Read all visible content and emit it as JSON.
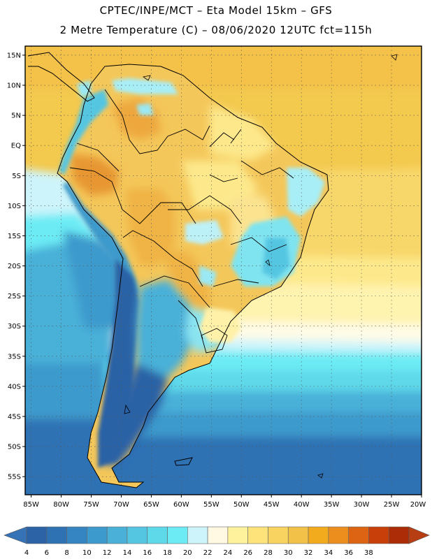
{
  "title": {
    "line1": "CPTEC/INPE/MCT  –   Eta Model 15km  –  GFS",
    "line2": "2 Metre Temperature (C) – 08/06/2020 12UTC fct=115h"
  },
  "map": {
    "variable": "2 Metre Temperature",
    "units": "C",
    "lon_range": [
      -86,
      -20
    ],
    "lat_range": [
      -58,
      16.5
    ],
    "lat_ticks": [
      {
        "value": 15,
        "label": "15N"
      },
      {
        "value": 10,
        "label": "10N"
      },
      {
        "value": 5,
        "label": "5N"
      },
      {
        "value": 0,
        "label": "EQ"
      },
      {
        "value": -5,
        "label": "5S"
      },
      {
        "value": -10,
        "label": "10S"
      },
      {
        "value": -15,
        "label": "15S"
      },
      {
        "value": -20,
        "label": "20S"
      },
      {
        "value": -25,
        "label": "25S"
      },
      {
        "value": -30,
        "label": "30S"
      },
      {
        "value": -35,
        "label": "35S"
      },
      {
        "value": -40,
        "label": "40S"
      },
      {
        "value": -45,
        "label": "45S"
      },
      {
        "value": -50,
        "label": "50S"
      },
      {
        "value": -55,
        "label": "55S"
      }
    ],
    "lon_ticks": [
      {
        "value": -85,
        "label": "85W"
      },
      {
        "value": -80,
        "label": "80W"
      },
      {
        "value": -75,
        "label": "75W"
      },
      {
        "value": -70,
        "label": "70W"
      },
      {
        "value": -65,
        "label": "65W"
      },
      {
        "value": -60,
        "label": "60W"
      },
      {
        "value": -55,
        "label": "55W"
      },
      {
        "value": -50,
        "label": "50W"
      },
      {
        "value": -45,
        "label": "45W"
      },
      {
        "value": -40,
        "label": "40W"
      },
      {
        "value": -35,
        "label": "35W"
      },
      {
        "value": -30,
        "label": "30W"
      },
      {
        "value": -25,
        "label": "25W"
      },
      {
        "value": -20,
        "label": "20W"
      }
    ]
  },
  "legend": {
    "labels": [
      "4",
      "6",
      "8",
      "10",
      "12",
      "14",
      "16",
      "18",
      "20",
      "22",
      "24",
      "26",
      "28",
      "30",
      "32",
      "34",
      "36",
      "38"
    ],
    "colors": [
      "#2c62a6",
      "#2e72b4",
      "#3485c1",
      "#3d9acc",
      "#4ab0d8",
      "#55c6e2",
      "#5ed9ea",
      "#6cebf4",
      "#cdf4fb",
      "#fff9e3",
      "#fef29c",
      "#fde37a",
      "#f8d35f",
      "#f2c248",
      "#f2ab1d",
      "#eb8e1e",
      "#dd6412",
      "#c83f0a",
      "#ab2c07"
    ],
    "under_color": "#3573b6",
    "over_color": "#b73e13"
  }
}
